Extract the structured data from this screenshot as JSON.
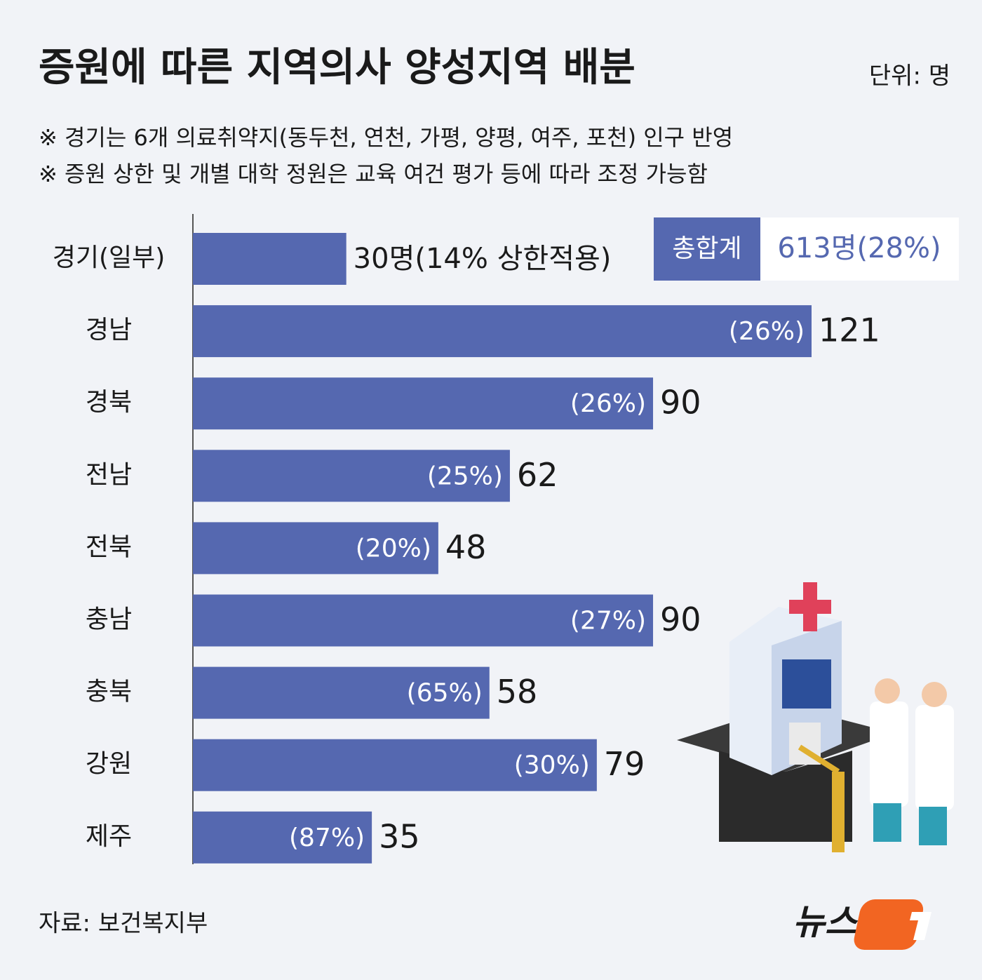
{
  "chart_data": {
    "type": "hbar",
    "title": "증원에 따른 지역의사 양성지역 배분",
    "unit": "단위: 명",
    "notes": [
      "※ 경기는 6개 의료취약지(동두천, 연천, 가평, 양평, 여주, 포천) 인구 반영",
      "※ 증원 상한 및 개별 대학 정원은 교육 여건 평가 등에 따라 조정 가능함"
    ],
    "categories": [
      "경기(일부)",
      "경남",
      "경북",
      "전남",
      "전북",
      "충남",
      "충북",
      "강원",
      "제주"
    ],
    "values": [
      30,
      121,
      90,
      62,
      48,
      90,
      58,
      79,
      35
    ],
    "value_labels": [
      "30명(14% 상한적용)",
      "121",
      "90",
      "62",
      "48",
      "90",
      "58",
      "79",
      "35"
    ],
    "inner_labels": [
      null,
      "(26%)",
      "(26%)",
      "(25%)",
      "(20%)",
      "(27%)",
      "(65%)",
      "(30%)",
      "(87%)"
    ],
    "color": "#5568b0",
    "xlim": [
      0,
      121
    ],
    "total": {
      "label": "총합계",
      "value_label": "613명(28%)"
    },
    "source": "자료: 보건복지부",
    "logo": "뉴스"
  }
}
